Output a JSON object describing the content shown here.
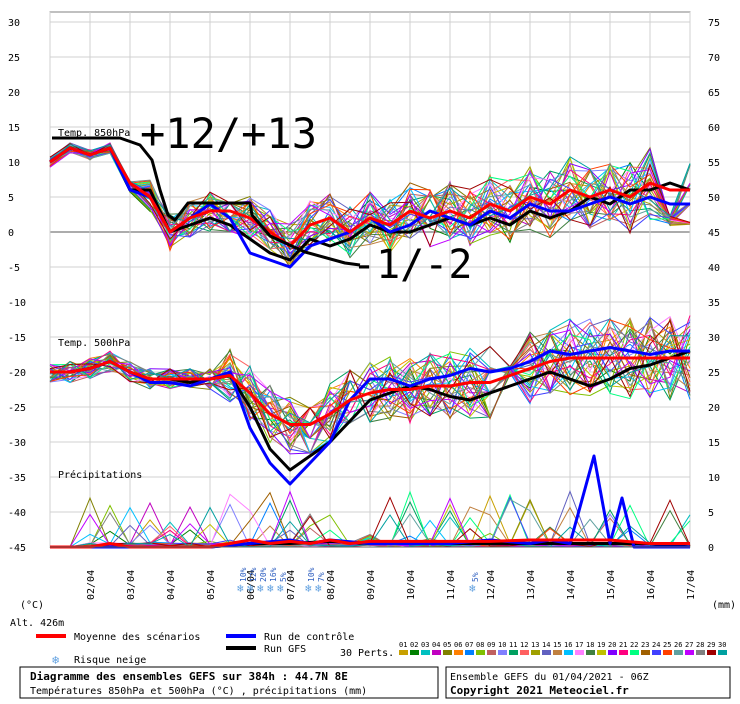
{
  "chart_data": {
    "type": "line",
    "title": "Diagramme des ensembles GEFS sur 384h : 44.7N 8E",
    "subtitle": "Températures 850hPa et 500hPa (°C) , précipitations (mm)",
    "left_axis": {
      "unit": "(°C)",
      "ticks": [
        30,
        25,
        20,
        15,
        10,
        5,
        0,
        -5,
        -10,
        -15,
        -20,
        -25,
        -30,
        -35,
        -40,
        -45
      ],
      "range": [
        -45,
        30
      ]
    },
    "right_axis": {
      "unit": "(mm)",
      "ticks": [
        75,
        70,
        65,
        60,
        55,
        50,
        45,
        40,
        35,
        30,
        25,
        20,
        15,
        10,
        5,
        0
      ]
    },
    "x_labels": [
      "02/04",
      "03/04",
      "04/04",
      "05/04",
      "06/04",
      "07/04",
      "08/04",
      "09/04",
      "10/04",
      "11/04",
      "12/04",
      "13/04",
      "14/04",
      "15/04",
      "16/04",
      "17/04"
    ],
    "altitude_label": "Alt. 426m",
    "section_labels": {
      "t850": "Temp. 850hPa",
      "t500": "Temp. 500hPa",
      "precip": "Précipitations"
    },
    "snow_risk": [
      {
        "day": 4.8,
        "pct": "10%"
      },
      {
        "day": 5.05,
        "pct": "12%"
      },
      {
        "day": 5.3,
        "pct": "20%"
      },
      {
        "day": 5.55,
        "pct": "16%"
      },
      {
        "day": 5.8,
        "pct": "5%"
      },
      {
        "day": 6.5,
        "pct": "10%"
      },
      {
        "day": 6.75,
        "pct": "7%"
      },
      {
        "day": 10.6,
        "pct": "5%"
      }
    ],
    "series": [
      {
        "name": "Moyenne des scénarios",
        "color": "#ff0000",
        "t850": [
          [
            0,
            10
          ],
          [
            0.5,
            12
          ],
          [
            1,
            11
          ],
          [
            1.5,
            12
          ],
          [
            2,
            7
          ],
          [
            2.5,
            5
          ],
          [
            3,
            0
          ],
          [
            3.5,
            2
          ],
          [
            4,
            3
          ],
          [
            4.5,
            3
          ],
          [
            5,
            2
          ],
          [
            5.5,
            0
          ],
          [
            6,
            -2
          ],
          [
            6.5,
            1
          ],
          [
            7,
            2
          ],
          [
            7.5,
            0
          ],
          [
            8,
            2
          ],
          [
            8.5,
            1
          ],
          [
            9,
            3
          ],
          [
            9.5,
            2
          ],
          [
            10,
            3
          ],
          [
            10.5,
            2
          ],
          [
            11,
            4
          ],
          [
            11.5,
            3
          ],
          [
            12,
            5
          ],
          [
            12.5,
            4
          ],
          [
            13,
            6
          ],
          [
            13.5,
            5
          ],
          [
            14,
            6
          ],
          [
            14.5,
            5
          ],
          [
            15,
            7
          ],
          [
            15.5,
            6
          ],
          [
            16,
            6
          ]
        ],
        "t500": [
          [
            0,
            -20
          ],
          [
            0.5,
            -20
          ],
          [
            1,
            -19.5
          ],
          [
            1.5,
            -18.5
          ],
          [
            2,
            -20
          ],
          [
            2.5,
            -21
          ],
          [
            3,
            -21
          ],
          [
            3.5,
            -21
          ],
          [
            4,
            -21
          ],
          [
            4.5,
            -20.5
          ],
          [
            5,
            -23
          ],
          [
            5.5,
            -26
          ],
          [
            6,
            -27.5
          ],
          [
            6.5,
            -27.5
          ],
          [
            7,
            -26
          ],
          [
            7.5,
            -24
          ],
          [
            8,
            -23
          ],
          [
            8.5,
            -22.5
          ],
          [
            9,
            -22.5
          ],
          [
            9.5,
            -22
          ],
          [
            10,
            -22
          ],
          [
            10.5,
            -21.5
          ],
          [
            11,
            -21.5
          ],
          [
            11.5,
            -20.5
          ],
          [
            12,
            -19.5
          ],
          [
            12.5,
            -18.5
          ],
          [
            13,
            -18
          ],
          [
            13.5,
            -18
          ],
          [
            14,
            -18
          ],
          [
            14.5,
            -18
          ],
          [
            15,
            -18
          ],
          [
            15.5,
            -18
          ],
          [
            16,
            -18
          ]
        ],
        "precip": [
          [
            0,
            0
          ],
          [
            1,
            0
          ],
          [
            1.5,
            0.5
          ],
          [
            2,
            0
          ],
          [
            3,
            0
          ],
          [
            4,
            0
          ],
          [
            4.5,
            0.5
          ],
          [
            5,
            1
          ],
          [
            5.5,
            0.5
          ],
          [
            6,
            0.8
          ],
          [
            6.5,
            0.5
          ],
          [
            7,
            1
          ],
          [
            7.5,
            0.5
          ],
          [
            8,
            0.8
          ],
          [
            9,
            0.8
          ],
          [
            10,
            0.8
          ],
          [
            11,
            0.8
          ],
          [
            12,
            1
          ],
          [
            13,
            1
          ],
          [
            14,
            1
          ],
          [
            15,
            0.5
          ],
          [
            16,
            0.5
          ]
        ]
      },
      {
        "name": "Run de contrôle",
        "color": "#0000ff",
        "t850": [
          [
            0,
            10
          ],
          [
            0.5,
            12
          ],
          [
            1,
            11
          ],
          [
            1.5,
            12
          ],
          [
            2,
            6
          ],
          [
            2.5,
            5
          ],
          [
            3,
            0
          ],
          [
            3.5,
            2
          ],
          [
            4,
            4
          ],
          [
            4.5,
            2
          ],
          [
            5,
            -3
          ],
          [
            5.5,
            -4
          ],
          [
            6,
            -5
          ],
          [
            6.5,
            -2
          ],
          [
            7,
            -1
          ],
          [
            7.5,
            0
          ],
          [
            8,
            2
          ],
          [
            8.5,
            0
          ],
          [
            9,
            1
          ],
          [
            9.5,
            3
          ],
          [
            10,
            2
          ],
          [
            10.5,
            1
          ],
          [
            11,
            3
          ],
          [
            11.5,
            2
          ],
          [
            12,
            4
          ],
          [
            12.5,
            3
          ],
          [
            13,
            3
          ],
          [
            13.5,
            4
          ],
          [
            14,
            5
          ],
          [
            14.5,
            4
          ],
          [
            15,
            5
          ],
          [
            15.5,
            4
          ],
          [
            16,
            4
          ]
        ],
        "t500": [
          [
            0,
            -20
          ],
          [
            0.5,
            -20
          ],
          [
            1,
            -19.5
          ],
          [
            1.5,
            -18.5
          ],
          [
            2,
            -20
          ],
          [
            2.5,
            -21.5
          ],
          [
            3,
            -21.5
          ],
          [
            3.5,
            -22
          ],
          [
            4,
            -21
          ],
          [
            4.5,
            -20
          ],
          [
            5,
            -28
          ],
          [
            5.5,
            -33
          ],
          [
            6,
            -36
          ],
          [
            6.5,
            -33
          ],
          [
            7,
            -30
          ],
          [
            7.5,
            -24
          ],
          [
            8,
            -21
          ],
          [
            8.5,
            -21
          ],
          [
            9,
            -22
          ],
          [
            9.5,
            -21
          ],
          [
            10,
            -20.5
          ],
          [
            10.5,
            -19.5
          ],
          [
            11,
            -20
          ],
          [
            11.5,
            -19.5
          ],
          [
            12,
            -18.5
          ],
          [
            12.5,
            -17
          ],
          [
            13,
            -17.5
          ],
          [
            13.5,
            -17
          ],
          [
            14,
            -16.5
          ],
          [
            14.5,
            -17
          ],
          [
            15,
            -17.5
          ],
          [
            15.5,
            -17
          ],
          [
            16,
            -17
          ]
        ],
        "precip": [
          [
            0,
            0
          ],
          [
            4,
            0
          ],
          [
            5,
            0.5
          ],
          [
            6,
            1
          ],
          [
            6.5,
            0.5
          ],
          [
            7,
            1
          ],
          [
            8,
            0.5
          ],
          [
            9,
            0.5
          ],
          [
            10,
            0.5
          ],
          [
            11,
            1
          ],
          [
            12,
            0.5
          ],
          [
            12.5,
            1
          ],
          [
            13,
            0.5
          ],
          [
            13.6,
            13
          ],
          [
            14,
            0.5
          ],
          [
            14.3,
            7
          ],
          [
            14.6,
            0
          ],
          [
            15,
            0
          ],
          [
            16,
            0
          ]
        ]
      },
      {
        "name": "Run GFS",
        "color": "#000000",
        "t850": [
          [
            0,
            10
          ],
          [
            0.5,
            12
          ],
          [
            1,
            11
          ],
          [
            1.5,
            12
          ],
          [
            2,
            6
          ],
          [
            2.5,
            6
          ],
          [
            3,
            0
          ],
          [
            3.5,
            1
          ],
          [
            4,
            2
          ],
          [
            4.5,
            1
          ],
          [
            5,
            -1
          ],
          [
            5.5,
            -3
          ],
          [
            6,
            -4
          ],
          [
            6.5,
            -1
          ],
          [
            7,
            -2
          ],
          [
            7.5,
            -1
          ],
          [
            8,
            1
          ],
          [
            8.5,
            0
          ],
          [
            9,
            0
          ],
          [
            9.5,
            1
          ],
          [
            10,
            2
          ],
          [
            10.5,
            1
          ],
          [
            11,
            2
          ],
          [
            11.5,
            1
          ],
          [
            12,
            3
          ],
          [
            12.5,
            2
          ],
          [
            13,
            3
          ],
          [
            13.5,
            5
          ],
          [
            14,
            4
          ],
          [
            14.5,
            6
          ],
          [
            15,
            6
          ],
          [
            15.5,
            7
          ],
          [
            16,
            6
          ]
        ],
        "t500": [
          [
            0,
            -20
          ],
          [
            0.5,
            -20
          ],
          [
            1,
            -19.5
          ],
          [
            1.5,
            -18.5
          ],
          [
            2,
            -20
          ],
          [
            2.5,
            -21
          ],
          [
            3,
            -21
          ],
          [
            3.5,
            -21.5
          ],
          [
            4,
            -21
          ],
          [
            4.5,
            -20.5
          ],
          [
            5,
            -25
          ],
          [
            5.5,
            -31
          ],
          [
            6,
            -34
          ],
          [
            6.5,
            -32
          ],
          [
            7,
            -30
          ],
          [
            7.5,
            -27
          ],
          [
            8,
            -24
          ],
          [
            8.5,
            -23
          ],
          [
            9,
            -22
          ],
          [
            9.5,
            -22.5
          ],
          [
            10,
            -23.5
          ],
          [
            10.5,
            -24
          ],
          [
            11,
            -23
          ],
          [
            11.5,
            -22
          ],
          [
            12,
            -21
          ],
          [
            12.5,
            -20
          ],
          [
            13,
            -21
          ],
          [
            13.5,
            -22
          ],
          [
            14,
            -21
          ],
          [
            14.5,
            -19.5
          ],
          [
            15,
            -19
          ],
          [
            15.5,
            -18
          ],
          [
            16,
            -17
          ]
        ],
        "precip": [
          [
            0,
            0
          ],
          [
            4,
            0
          ],
          [
            5,
            0.5
          ],
          [
            6,
            0.5
          ],
          [
            7,
            0.8
          ],
          [
            8,
            0.5
          ],
          [
            9,
            0.5
          ],
          [
            10,
            0.5
          ],
          [
            11,
            0.5
          ],
          [
            12,
            0.5
          ],
          [
            13,
            0.5
          ],
          [
            14,
            0.5
          ],
          [
            15,
            0.5
          ],
          [
            16,
            0
          ]
        ]
      }
    ],
    "perturbation_label": "30 Perts.",
    "perturbation_ids": [
      "01",
      "02",
      "03",
      "04",
      "05",
      "06",
      "07",
      "08",
      "09",
      "10",
      "11",
      "12",
      "13",
      "14",
      "15",
      "16",
      "17",
      "18",
      "19",
      "20",
      "21",
      "22",
      "23",
      "24",
      "25",
      "26",
      "27",
      "28",
      "29",
      "30"
    ],
    "perturbation_colors": [
      "#c8a000",
      "#008000",
      "#00c0c0",
      "#c000c0",
      "#808000",
      "#ff8000",
      "#0080ff",
      "#80c000",
      "#c06060",
      "#8080ff",
      "#00a060",
      "#ff6060",
      "#a0a000",
      "#6060c0",
      "#c08040",
      "#00c0ff",
      "#ff80ff",
      "#408040",
      "#c0c000",
      "#8000ff",
      "#ff0080",
      "#00ff80",
      "#a06000",
      "#4040ff",
      "#ff4000",
      "#60a0a0",
      "#c000ff",
      "#808080",
      "#a00000",
      "#00a0a0"
    ],
    "annotations": [
      "+12/+13",
      "-1/-2"
    ],
    "legend": {
      "snow_label": "Risque neige"
    },
    "footer": {
      "run_info": "Ensemble GEFS du 01/04/2021 - 06Z",
      "copyright": "Copyright 2021 Meteociel.fr"
    },
    "grid": true
  }
}
